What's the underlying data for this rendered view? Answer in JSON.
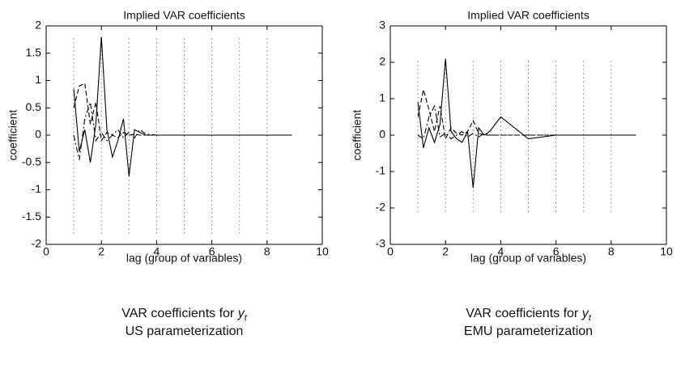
{
  "chart_data": [
    {
      "type": "line",
      "title": "Implied VAR coefficients",
      "xlabel": "lag (group of variables)",
      "ylabel": "coefficient",
      "caption_text": "VAR coefficients for ",
      "caption_symbol": "y",
      "caption_subscript": "t",
      "caption_line2": "US parameterization",
      "xlim": [
        0,
        10
      ],
      "xticks": [
        0,
        2,
        4,
        6,
        8,
        10
      ],
      "ylim": [
        -2,
        2
      ],
      "yticks": [
        -2,
        -1.5,
        -1,
        -0.5,
        0,
        0.5,
        1,
        1.5,
        2
      ],
      "vlines": [
        1,
        2,
        3,
        4,
        5,
        6,
        7,
        8
      ],
      "vline_range": [
        -1.8,
        1.8
      ],
      "x": [
        1,
        1.2,
        1.4,
        1.6,
        1.8,
        2,
        2.2,
        2.4,
        2.6,
        2.8,
        3,
        3.2,
        3.4,
        3.6,
        4,
        5,
        6,
        7,
        8,
        8.9
      ],
      "series": [
        {
          "color": "#000000",
          "dash": "solid",
          "values": [
            0.85,
            -0.3,
            0.1,
            -0.5,
            0.2,
            1.8,
            0.1,
            -0.4,
            -0.1,
            0.3,
            -0.75,
            0.1,
            0.05,
            0,
            0,
            0,
            0,
            0,
            0,
            0
          ]
        },
        {
          "color": "#000000",
          "dash": "dashed",
          "values": [
            0.5,
            0.9,
            0.95,
            0.2,
            0.6,
            -0.1,
            0.05,
            0,
            -0.05,
            0.05,
            0,
            0.02,
            0,
            0,
            0,
            0,
            0,
            0,
            0,
            0
          ]
        },
        {
          "color": "#000000",
          "dash": "dashdot",
          "values": [
            0,
            -0.45,
            0.3,
            0.6,
            -0.1,
            0.05,
            -0.1,
            0,
            0.1,
            -0.05,
            0.05,
            -0.05,
            0.1,
            0.02,
            0,
            0,
            0,
            0,
            0,
            0
          ]
        }
      ]
    },
    {
      "type": "line",
      "title": "Implied VAR coefficients",
      "xlabel": "lag (group of variables)",
      "ylabel": "coefficient",
      "caption_text": "VAR coefficients for ",
      "caption_symbol": "y",
      "caption_subscript": "t",
      "caption_line2": "EMU parameterization",
      "xlim": [
        0,
        10
      ],
      "xticks": [
        0,
        2,
        4,
        6,
        8,
        10
      ],
      "ylim": [
        -3,
        3
      ],
      "yticks": [
        -3,
        -2,
        -1,
        0,
        1,
        2,
        3
      ],
      "vlines": [
        1,
        2,
        3,
        4,
        5,
        6,
        7,
        8
      ],
      "vline_range": [
        -2.1,
        2.1
      ],
      "x": [
        1,
        1.2,
        1.4,
        1.6,
        1.8,
        2,
        2.2,
        2.4,
        2.6,
        2.8,
        3,
        3.2,
        3.4,
        3.6,
        4,
        5,
        6,
        7,
        8,
        8.9
      ],
      "series": [
        {
          "color": "#000000",
          "dash": "solid",
          "values": [
            0.9,
            -0.35,
            0.2,
            -0.2,
            0.3,
            2.1,
            0.1,
            -0.1,
            -0.2,
            0.1,
            -1.45,
            0.2,
            0,
            0.1,
            0.5,
            -0.1,
            0,
            0,
            0,
            0
          ]
        },
        {
          "color": "#000000",
          "dash": "dashed",
          "values": [
            0.5,
            1.25,
            0.7,
            0.1,
            0.8,
            -0.1,
            0.2,
            0.05,
            0,
            0.1,
            0.4,
            0.05,
            0,
            0,
            0,
            0,
            0,
            0,
            0,
            0
          ]
        },
        {
          "color": "#000000",
          "dash": "dashdot",
          "values": [
            0,
            -0.1,
            0.5,
            0.8,
            -0.05,
            0.05,
            -0.1,
            0,
            0.1,
            -0.05,
            0.05,
            -0.05,
            0.05,
            0,
            0,
            0,
            0,
            0,
            0,
            0
          ]
        }
      ]
    }
  ]
}
